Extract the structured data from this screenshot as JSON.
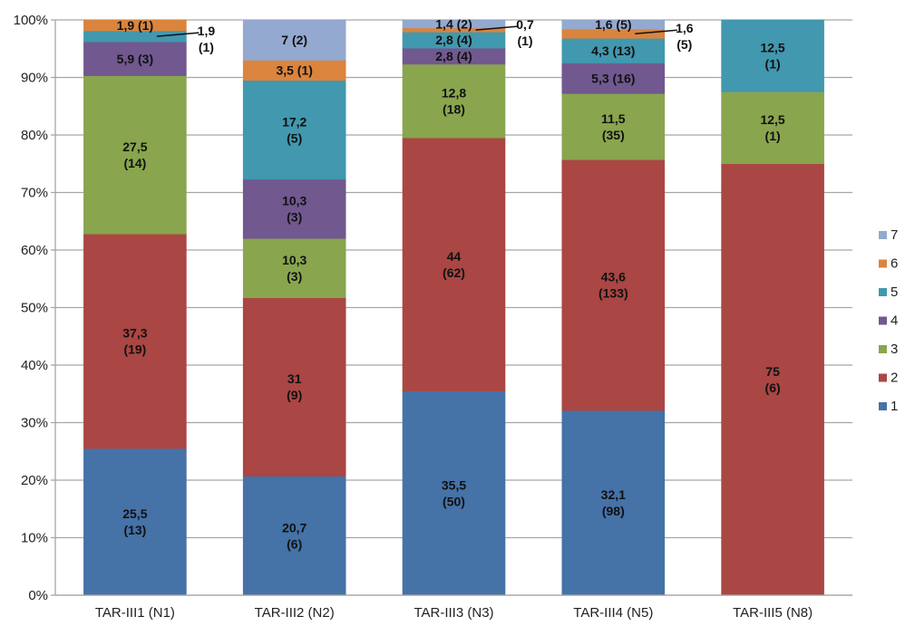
{
  "chart_data": {
    "type": "bar",
    "stacked": true,
    "percent_stacked": true,
    "title": "",
    "xlabel": "",
    "ylabel": "",
    "ylim": [
      0,
      100
    ],
    "yticks": [
      "0%",
      "10%",
      "20%",
      "30%",
      "40%",
      "50%",
      "60%",
      "70%",
      "80%",
      "90%",
      "100%"
    ],
    "grid": true,
    "legend_position": "right",
    "categories": [
      "TAR-III1 (N1)",
      "TAR-III2 (N2)",
      "TAR-III3 (N3)",
      "TAR-III4 (N5)",
      "TAR-III5 (N8)"
    ],
    "series": [
      {
        "name": "1",
        "color": "#4572A7",
        "values": [
          25.5,
          20.7,
          35.5,
          32.1,
          0
        ],
        "counts": [
          13,
          6,
          50,
          98,
          0
        ],
        "labels": [
          "25,5\n(13)",
          "20,7\n(6)",
          "35,5\n(50)",
          "32,1\n(98)",
          ""
        ]
      },
      {
        "name": "2",
        "color": "#AA4643",
        "values": [
          37.3,
          31,
          44,
          43.6,
          75
        ],
        "counts": [
          19,
          9,
          62,
          133,
          6
        ],
        "labels": [
          "37,3\n(19)",
          "31\n(9)",
          "44\n(62)",
          "43,6\n(133)",
          "75\n(6)"
        ]
      },
      {
        "name": "3",
        "color": "#89A54E",
        "values": [
          27.5,
          10.3,
          12.8,
          11.5,
          12.5
        ],
        "counts": [
          14,
          3,
          18,
          35,
          1
        ],
        "labels": [
          "27,5\n(14)",
          "10,3\n(3)",
          "12,8\n(18)",
          "11,5\n(35)",
          "12,5\n(1)"
        ]
      },
      {
        "name": "4",
        "color": "#71588F",
        "values": [
          5.9,
          10.3,
          2.8,
          5.3,
          0
        ],
        "counts": [
          3,
          3,
          4,
          16,
          0
        ],
        "labels": [
          "5,9 (3)",
          "10,3\n(3)",
          "2,8 (4)",
          "5,3 (16)",
          ""
        ]
      },
      {
        "name": "5",
        "color": "#4198AF",
        "values": [
          1.9,
          17.2,
          2.8,
          4.3,
          12.5
        ],
        "counts": [
          1,
          5,
          4,
          13,
          1
        ],
        "labels": [
          "1,9\n(1)",
          "17,2\n(5)",
          "2,8 (4)",
          "4,3 (13)",
          "12,5\n(1)"
        ],
        "outside": [
          true,
          false,
          false,
          false,
          false
        ]
      },
      {
        "name": "6",
        "color": "#DB843D",
        "values": [
          1.9,
          3.5,
          0.7,
          1.6,
          0
        ],
        "counts": [
          1,
          1,
          1,
          5,
          0
        ],
        "labels": [
          "1,9 (1)",
          "3,5 (1)",
          "0,7\n(1)",
          "1,6\n(5)",
          ""
        ],
        "outside": [
          false,
          false,
          true,
          true,
          false
        ]
      },
      {
        "name": "7",
        "color": "#93A9CF",
        "values": [
          0,
          7,
          1.4,
          1.6,
          0
        ],
        "counts": [
          0,
          2,
          2,
          5,
          0
        ],
        "labels": [
          "",
          "7 (2)",
          "1,4 (2)",
          "1,6 (5)",
          ""
        ]
      }
    ]
  }
}
